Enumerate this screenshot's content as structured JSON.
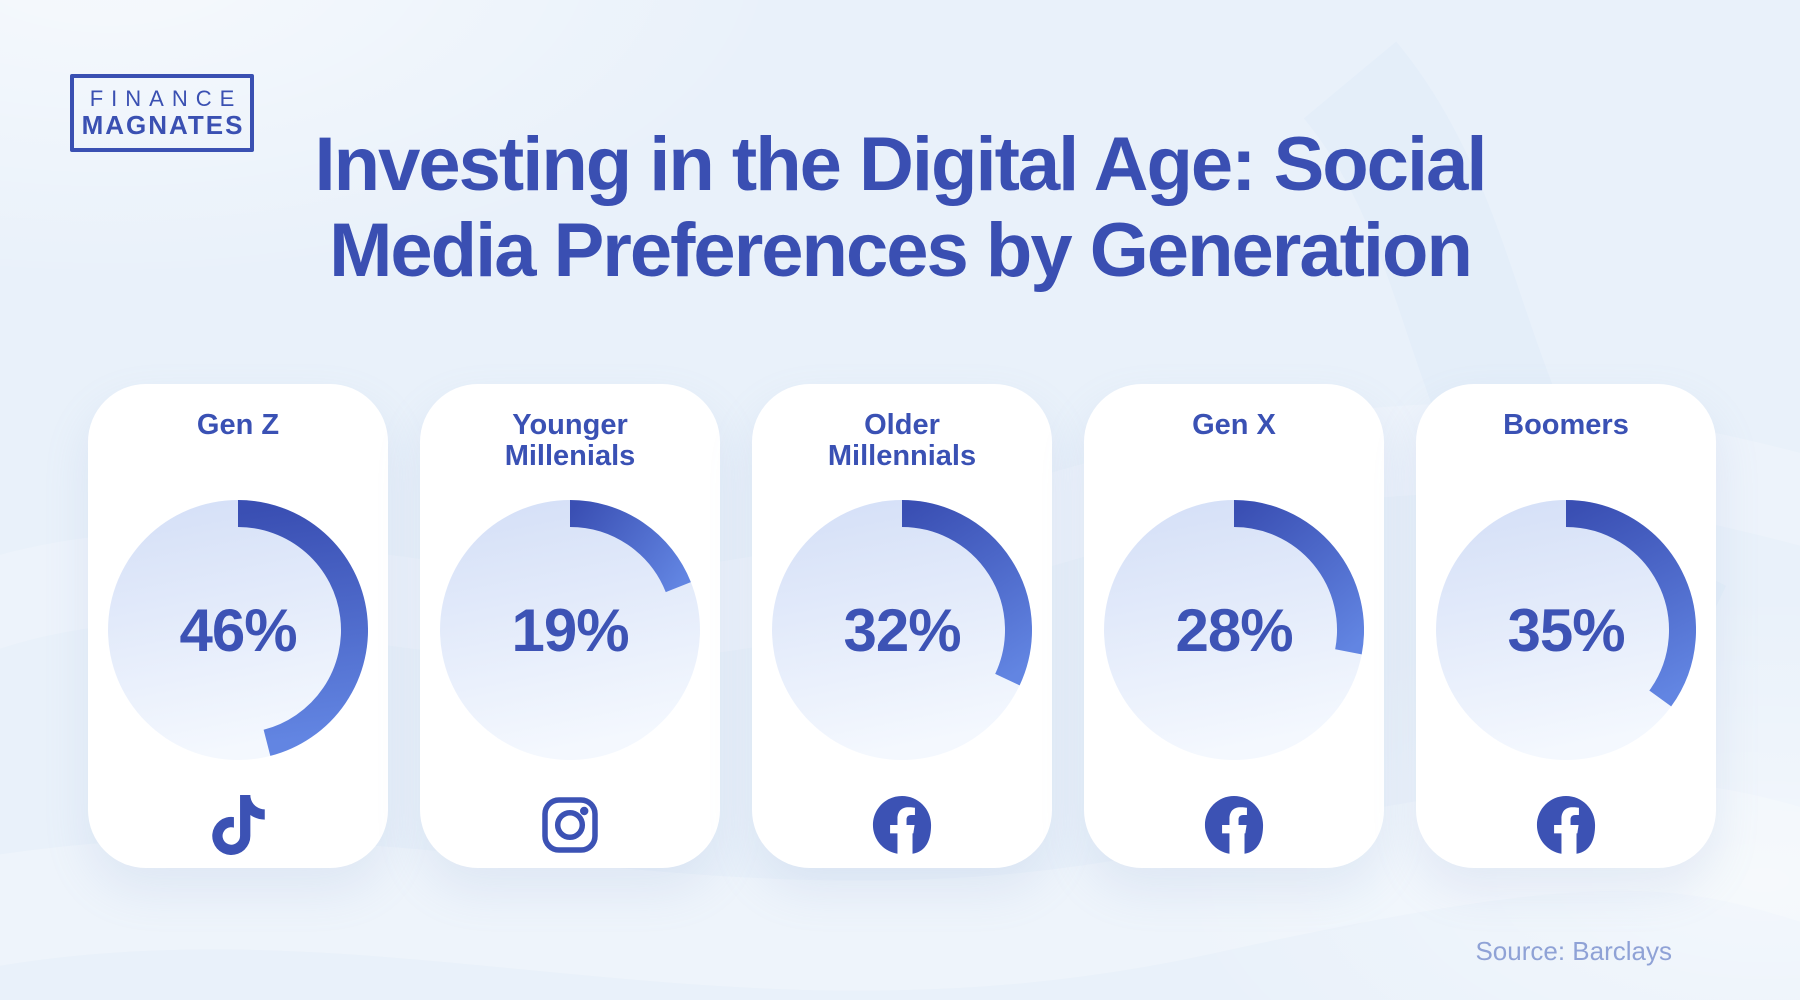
{
  "brand": {
    "line1": "FINANCE",
    "line2": "MAGNATES"
  },
  "title": {
    "line1": "Investing in the Digital Age: Social",
    "line2": "Media Preferences by Generation"
  },
  "source": "Source: Barclays",
  "colors": {
    "background": "#E9F1FA",
    "title_blue": "#3A4FB2",
    "label_blue": "#3A51B4",
    "value_blue": "#3D53B5",
    "arc_start": "#3A4FB3",
    "arc_end": "#6285E2",
    "circle_top": "#D4DFF7",
    "circle_bottom": "#F4F8FE",
    "icon_blue": "#3C52B4",
    "source_text": "#8FA2D6"
  },
  "chart_data": {
    "type": "donut",
    "title": "Investing in the Digital Age: Social Media Preferences by Generation",
    "unit": "%",
    "categories": [
      "Gen Z",
      "Younger Millenials",
      "Older Millennials",
      "Gen X",
      "Boomers"
    ],
    "values": [
      46,
      19,
      32,
      28,
      35
    ],
    "platform_icons": [
      "tiktok",
      "instagram",
      "facebook",
      "facebook",
      "facebook"
    ],
    "value_labels": [
      "46%",
      "19%",
      "32%",
      "28%",
      "35%"
    ],
    "arc_start_angle_deg": 0,
    "arc_direction": "clockwise",
    "source": "Source: Barclays"
  },
  "cards": [
    {
      "label_lines": [
        "Gen Z"
      ],
      "value": 46,
      "value_label": "46%",
      "icon": "tiktok-icon"
    },
    {
      "label_lines": [
        "Younger",
        "Millenials"
      ],
      "value": 19,
      "value_label": "19%",
      "icon": "instagram-icon"
    },
    {
      "label_lines": [
        "Older",
        "Millennials"
      ],
      "value": 32,
      "value_label": "32%",
      "icon": "facebook-icon"
    },
    {
      "label_lines": [
        "Gen X"
      ],
      "value": 28,
      "value_label": "28%",
      "icon": "facebook-icon"
    },
    {
      "label_lines": [
        "Boomers"
      ],
      "value": 35,
      "value_label": "35%",
      "icon": "facebook-icon"
    }
  ]
}
